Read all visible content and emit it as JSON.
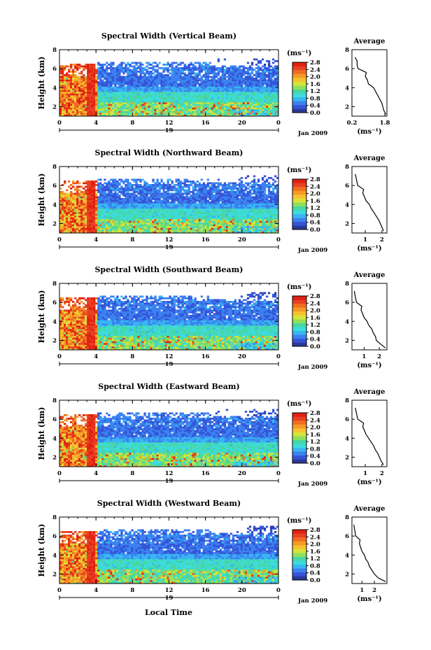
{
  "palette": [
    "#2a3a9a",
    "#3554d8",
    "#3b82f0",
    "#38b6f2",
    "#3cdcdc",
    "#48d6a2",
    "#8ee05a",
    "#d6e43a",
    "#f6c22c",
    "#f59a24",
    "#f26d1e",
    "#e84022",
    "#e02010"
  ],
  "chart_data": [
    {
      "type": "heatmap",
      "title": "Spectral Width (Vertical Beam)",
      "ylabel": "Height (km)",
      "x_ticks": [
        "0",
        "4",
        "8",
        "12",
        "16",
        "20",
        "0"
      ],
      "day_label": "19",
      "date_label": "Jan 2009",
      "y_ticks": [
        "2",
        "4",
        "6",
        "8"
      ],
      "xlim": [
        0,
        24
      ],
      "ylim": [
        1,
        8
      ],
      "colorbar": {
        "unit": "(ms⁻¹)",
        "ticks": [
          "0.0",
          "0.4",
          "0.8",
          "1.2",
          "1.6",
          "2.0",
          "2.4",
          "2.8"
        ],
        "range": [
          0.0,
          2.8
        ]
      },
      "average": {
        "title": "Average",
        "xlabel": "(ms⁻¹)",
        "x_ticks": [
          "0.2",
          "1.8"
        ],
        "xlim": [
          0.2,
          1.9
        ],
        "y_ticks": [
          "2",
          "4",
          "6",
          "8"
        ],
        "ylim": [
          1,
          8
        ],
        "height_km": [
          1.2,
          1.6,
          2.0,
          2.4,
          2.8,
          3.2,
          3.6,
          4.0,
          4.4,
          4.8,
          5.2,
          5.6,
          6.0,
          6.4,
          6.8,
          7.2
        ],
        "width": [
          1.85,
          1.75,
          1.7,
          1.65,
          1.55,
          1.45,
          1.35,
          1.25,
          1.0,
          0.95,
          0.85,
          0.9,
          0.5,
          0.45,
          0.45,
          0.35
        ]
      }
    },
    {
      "type": "heatmap",
      "title": "Spectral Width (Northward Beam)",
      "ylabel": "Height (km)",
      "x_ticks": [
        "0",
        "4",
        "8",
        "12",
        "16",
        "20",
        "0"
      ],
      "day_label": "19",
      "date_label": "Jan 2009",
      "y_ticks": [
        "2",
        "4",
        "6",
        "8"
      ],
      "xlim": [
        0,
        24
      ],
      "ylim": [
        1,
        8
      ],
      "colorbar": {
        "unit": "(ms⁻¹)",
        "ticks": [
          "0.0",
          "0.4",
          "0.8",
          "1.2",
          "1.6",
          "2.0",
          "2.4",
          "2.8"
        ],
        "range": [
          0.0,
          2.8
        ]
      },
      "average": {
        "title": "Average",
        "xlabel": "(ms⁻¹)",
        "x_ticks": [
          "1",
          "2"
        ],
        "xlim": [
          0.2,
          2.3
        ],
        "y_ticks": [
          "2",
          "4",
          "6",
          "8"
        ],
        "ylim": [
          1,
          8
        ],
        "height_km": [
          1.2,
          1.6,
          2.0,
          2.4,
          2.8,
          3.2,
          3.6,
          4.0,
          4.4,
          4.8,
          5.2,
          5.6,
          6.0,
          6.4,
          6.8,
          7.2
        ],
        "width": [
          2.1,
          2.0,
          1.9,
          1.8,
          1.65,
          1.5,
          1.35,
          1.25,
          1.05,
          0.95,
          0.85,
          0.9,
          0.55,
          0.5,
          0.45,
          0.4
        ]
      }
    },
    {
      "type": "heatmap",
      "title": "Spectral Width (Southward Beam)",
      "ylabel": "Height (km)",
      "x_ticks": [
        "0",
        "4",
        "8",
        "12",
        "16",
        "20",
        "0"
      ],
      "day_label": "19",
      "date_label": "Jan 2009",
      "y_ticks": [
        "2",
        "4",
        "6",
        "8"
      ],
      "xlim": [
        0,
        24
      ],
      "ylim": [
        1,
        8
      ],
      "colorbar": {
        "unit": "(ms⁻¹)",
        "ticks": [
          "0.0",
          "0.4",
          "0.8",
          "1.2",
          "1.6",
          "2.0",
          "2.4",
          "2.8"
        ],
        "range": [
          0.0,
          2.8
        ]
      },
      "average": {
        "title": "Average",
        "xlabel": "(ms⁻¹)",
        "x_ticks": [
          "1",
          "2"
        ],
        "xlim": [
          0.2,
          2.5
        ],
        "y_ticks": [
          "2",
          "4",
          "6",
          "8"
        ],
        "ylim": [
          1,
          8
        ],
        "height_km": [
          1.2,
          1.6,
          2.0,
          2.4,
          2.8,
          3.2,
          3.6,
          4.0,
          4.4,
          4.8,
          5.2,
          5.6,
          6.0,
          6.4,
          6.8,
          7.2
        ],
        "width": [
          2.4,
          2.1,
          1.8,
          1.75,
          1.6,
          1.5,
          1.3,
          1.2,
          1.0,
          0.9,
          0.8,
          0.85,
          0.5,
          0.45,
          0.4,
          0.35
        ]
      }
    },
    {
      "type": "heatmap",
      "title": "Spectral Width (Eastward Beam)",
      "ylabel": "Height (km)",
      "x_ticks": [
        "0",
        "4",
        "8",
        "12",
        "16",
        "20",
        "0"
      ],
      "day_label": "19",
      "date_label": "Jan 2009",
      "y_ticks": [
        "2",
        "4",
        "6",
        "8"
      ],
      "xlim": [
        0,
        24
      ],
      "ylim": [
        1,
        8
      ],
      "colorbar": {
        "unit": "(ms⁻¹)",
        "ticks": [
          "0.0",
          "0.4",
          "0.8",
          "1.2",
          "1.6",
          "2.0",
          "2.4",
          "2.8"
        ],
        "range": [
          0.0,
          2.8
        ]
      },
      "average": {
        "title": "Average",
        "xlabel": "(ms⁻¹)",
        "x_ticks": [
          "1",
          "2"
        ],
        "xlim": [
          0.2,
          2.3
        ],
        "y_ticks": [
          "2",
          "4",
          "6",
          "8"
        ],
        "ylim": [
          1,
          8
        ],
        "height_km": [
          1.2,
          1.6,
          2.0,
          2.4,
          2.8,
          3.2,
          3.6,
          4.0,
          4.4,
          4.8,
          5.2,
          5.6,
          6.0,
          6.4,
          6.8,
          7.2
        ],
        "width": [
          2.1,
          1.95,
          1.85,
          1.75,
          1.6,
          1.5,
          1.35,
          1.2,
          1.05,
          0.95,
          0.85,
          0.9,
          0.55,
          0.5,
          0.45,
          0.4
        ]
      }
    },
    {
      "type": "heatmap",
      "title": "Spectral Width (Westward Beam)",
      "ylabel": "Height (km)",
      "x_ticks": [
        "0",
        "4",
        "8",
        "12",
        "16",
        "20",
        "0"
      ],
      "day_label": "19",
      "date_label": "Jan 2009",
      "y_ticks": [
        "2",
        "4",
        "6",
        "8"
      ],
      "xlim": [
        0,
        24
      ],
      "ylim": [
        1,
        8
      ],
      "colorbar": {
        "unit": "(ms⁻¹)",
        "ticks": [
          "0.0",
          "0.4",
          "0.8",
          "1.2",
          "1.6",
          "2.0",
          "2.4",
          "2.8"
        ],
        "range": [
          0.0,
          2.8
        ]
      },
      "average": {
        "title": "Average",
        "xlabel": "(ms⁻¹)",
        "x_ticks": [
          "1",
          "2"
        ],
        "xlim": [
          0.2,
          3.0
        ],
        "y_ticks": [
          "2",
          "4",
          "6",
          "8"
        ],
        "ylim": [
          1,
          8
        ],
        "height_km": [
          1.2,
          1.6,
          2.0,
          2.4,
          2.8,
          3.2,
          3.6,
          4.0,
          4.4,
          4.8,
          5.2,
          5.6,
          6.0,
          6.4,
          6.8,
          7.2
        ],
        "width": [
          2.9,
          2.3,
          2.0,
          1.8,
          1.6,
          1.5,
          1.3,
          1.2,
          1.0,
          0.9,
          0.8,
          0.85,
          0.5,
          0.45,
          0.4,
          0.35
        ]
      }
    }
  ],
  "footer": {
    "xlabel": "Local Time"
  }
}
